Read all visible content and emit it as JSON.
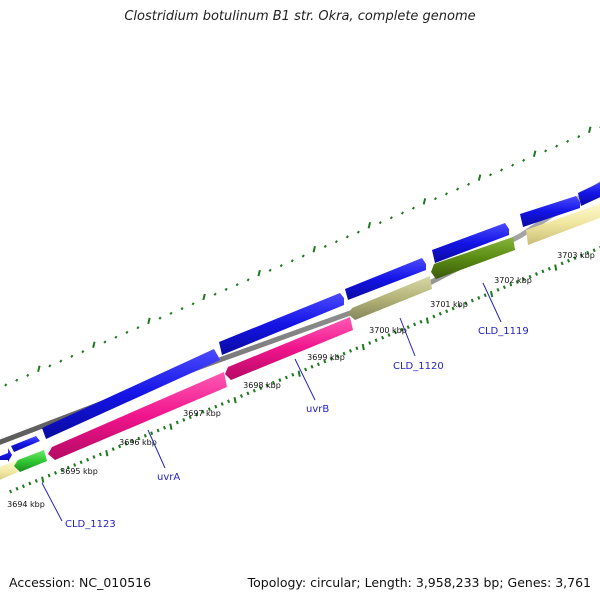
{
  "title": "Clostridium botulinum B1 str. Okra, complete genome",
  "footer": {
    "accession": "Accession: NC_010516",
    "summary": "Topology: circular; Length: 3,958,233 bp; Genes: 3,761"
  },
  "colors": {
    "backbone": "#8c8c8c",
    "gene_forward": "#1414e6",
    "tick": "#1e7a1e",
    "label": "#2323c8",
    "uvrA_uvrB": "#f0148c",
    "CLD_1123": "#32c832",
    "CLD_1120": "#b4b478",
    "CLD_1119": "#5a8c14",
    "pale": "#f0e6a0"
  },
  "scale": {
    "unit": "kbp",
    "labels": [
      "3694 kbp",
      "3695 kbp",
      "3696 kbp",
      "3697 kbp",
      "3698 kbp",
      "3699 kbp",
      "3700 kbp",
      "3701 kbp",
      "3702 kbp",
      "3703 kbp"
    ]
  },
  "genes": [
    {
      "name": "CLD_1123",
      "color": "#32c832"
    },
    {
      "name": "uvrA",
      "color": "#f0148c"
    },
    {
      "name": "uvrB",
      "color": "#f0148c"
    },
    {
      "name": "CLD_1120",
      "color": "#b4b478"
    },
    {
      "name": "CLD_1119",
      "color": "#5a8c14"
    }
  ]
}
